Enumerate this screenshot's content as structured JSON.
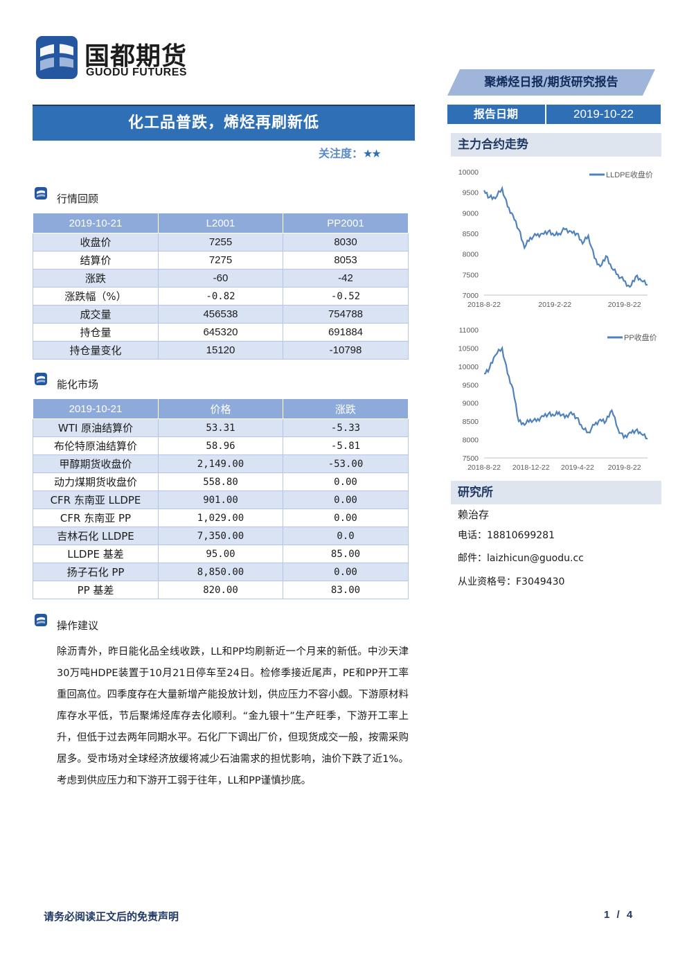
{
  "logo": {
    "name_cn": "国都期货",
    "name_en": "GUODU FUTURES"
  },
  "report_type": "聚烯烃日报/期货研究报告",
  "title": "化工品普跌，烯烃再刷新低",
  "focus": {
    "label": "关注度：",
    "stars": "★★"
  },
  "report_date": {
    "label": "报告日期",
    "value": "2019-10-22"
  },
  "sidebar": {
    "trend_heading": "主力合约走势",
    "research_heading": "研究所",
    "analyst": "赖治存",
    "phone": "电话：18810699281",
    "email": "邮件：laizhicun@guodu.cc",
    "license": "从业资格号：F3049430"
  },
  "section_market": {
    "title": "行情回顾"
  },
  "market_table": {
    "headers": [
      "2019-10-21",
      "L2001",
      "PP2001"
    ],
    "rows": [
      [
        "收盘价",
        "7255",
        "8030"
      ],
      [
        "结算价",
        "7275",
        "8053"
      ],
      [
        "涨跌",
        "-60",
        "-42"
      ],
      [
        "涨跌幅（%）",
        "-0.82",
        "-0.52"
      ],
      [
        "成交量",
        "456538",
        "754788"
      ],
      [
        "持仓量",
        "645320",
        "691884"
      ],
      [
        "持仓量变化",
        "15120",
        "-10798"
      ]
    ]
  },
  "section_energy": {
    "title": "能化市场"
  },
  "energy_table": {
    "headers": [
      "2019-10-21",
      "价格",
      "涨跌"
    ],
    "rows": [
      [
        "WTI 原油结算价",
        "53.31",
        "-5.33"
      ],
      [
        "布伦特原油结算价",
        "58.96",
        "-5.81"
      ],
      [
        "甲醇期货收盘价",
        "2,149.00",
        "-53.00"
      ],
      [
        "动力煤期货收盘价",
        "558.80",
        "0.00"
      ],
      [
        "CFR 东南亚 LLDPE",
        "901.00",
        "0.00"
      ],
      [
        "CFR 东南亚 PP",
        "1,029.00",
        "0.00"
      ],
      [
        "吉林石化 LLDPE",
        "7,350.00",
        "0.0"
      ],
      [
        "LLDPE 基差",
        "95.00",
        "85.00"
      ],
      [
        "扬子石化 PP",
        "8,850.00",
        "0.00"
      ],
      [
        "PP 基差",
        "820.00",
        "83.00"
      ]
    ]
  },
  "section_advice": {
    "title": "操作建议"
  },
  "advice_text": "除沥青外，昨日能化品全线收跌，LL和PP均刷新近一个月来的新低。中沙天津30万吨HDPE装置于10月21日停车至24日。检修季接近尾声，PE和PP开工率重回高位。四季度存在大量新增产能投放计划，供应压力不容小觑。下游原材料库存水平低，节后聚烯烃库存去化顺利。“金九银十”生产旺季，下游开工率上升，但低于过去两年同期水平。石化厂下调出厂价，但现货成交一般，按需采购居多。受市场对全球经济放缓将减少石油需求的担忧影响，油价下跌了近1%。考虑到供应压力和下游开工弱于往年，LL和PP谨慎抄底。",
  "footer": {
    "disclaimer": "请务必阅读正文后的免责声明",
    "page": "1 / 4"
  },
  "colors": {
    "brand_blue": "#2f6fb6",
    "line_color": "#4f81bd",
    "header_blue": "#8eaadb"
  },
  "chart_data": [
    {
      "type": "line",
      "legend": "LLDPE收盘价",
      "legend_position": "top-right",
      "ylim": [
        7000,
        10000
      ],
      "y_ticks": [
        7000,
        7500,
        8000,
        8500,
        9000,
        9500,
        10000
      ],
      "x_ticks": [
        "2018-8-22",
        "2019-2-22",
        "2019-8-22"
      ],
      "x": [
        "2018-08-22",
        "2018-09-05",
        "2018-09-20",
        "2018-10-08",
        "2018-10-22",
        "2018-11-05",
        "2018-11-20",
        "2018-12-05",
        "2018-12-20",
        "2019-01-05",
        "2019-01-20",
        "2019-02-05",
        "2019-02-20",
        "2019-03-05",
        "2019-03-20",
        "2019-04-05",
        "2019-04-20",
        "2019-05-05",
        "2019-05-20",
        "2019-06-05",
        "2019-06-20",
        "2019-07-05",
        "2019-07-20",
        "2019-08-05",
        "2019-08-20",
        "2019-09-05",
        "2019-09-20",
        "2019-10-05",
        "2019-10-21"
      ],
      "values": [
        9550,
        9380,
        9350,
        9600,
        9150,
        8950,
        8600,
        8150,
        8400,
        8450,
        8500,
        8550,
        8450,
        8500,
        8600,
        8550,
        8500,
        8250,
        8450,
        7900,
        7700,
        7950,
        7650,
        7500,
        7350,
        7200,
        7450,
        7350,
        7255
      ]
    },
    {
      "type": "line",
      "legend": "PP收盘价",
      "legend_position": "top-right",
      "ylim": [
        7500,
        11000
      ],
      "y_ticks": [
        7500,
        8000,
        8500,
        9000,
        9500,
        10000,
        10500,
        11000
      ],
      "x_ticks": [
        "2018-8-22",
        "2018-12-22",
        "2019-4-22",
        "2019-8-22"
      ],
      "x": [
        "2018-08-22",
        "2018-09-05",
        "2018-09-20",
        "2018-10-08",
        "2018-10-22",
        "2018-11-05",
        "2018-11-20",
        "2018-12-05",
        "2018-12-20",
        "2019-01-05",
        "2019-01-20",
        "2019-02-05",
        "2019-02-20",
        "2019-03-05",
        "2019-03-20",
        "2019-04-05",
        "2019-04-20",
        "2019-05-05",
        "2019-05-20",
        "2019-06-05",
        "2019-06-20",
        "2019-07-05",
        "2019-07-20",
        "2019-08-05",
        "2019-08-20",
        "2019-09-05",
        "2019-09-20",
        "2019-10-05",
        "2019-10-21"
      ],
      "values": [
        9800,
        9950,
        10300,
        10500,
        9800,
        9400,
        8500,
        8400,
        8550,
        8500,
        8650,
        8700,
        8650,
        8750,
        8600,
        8750,
        8600,
        8300,
        8200,
        8400,
        8550,
        8500,
        8800,
        8300,
        8050,
        8200,
        8250,
        8150,
        8030
      ]
    }
  ]
}
